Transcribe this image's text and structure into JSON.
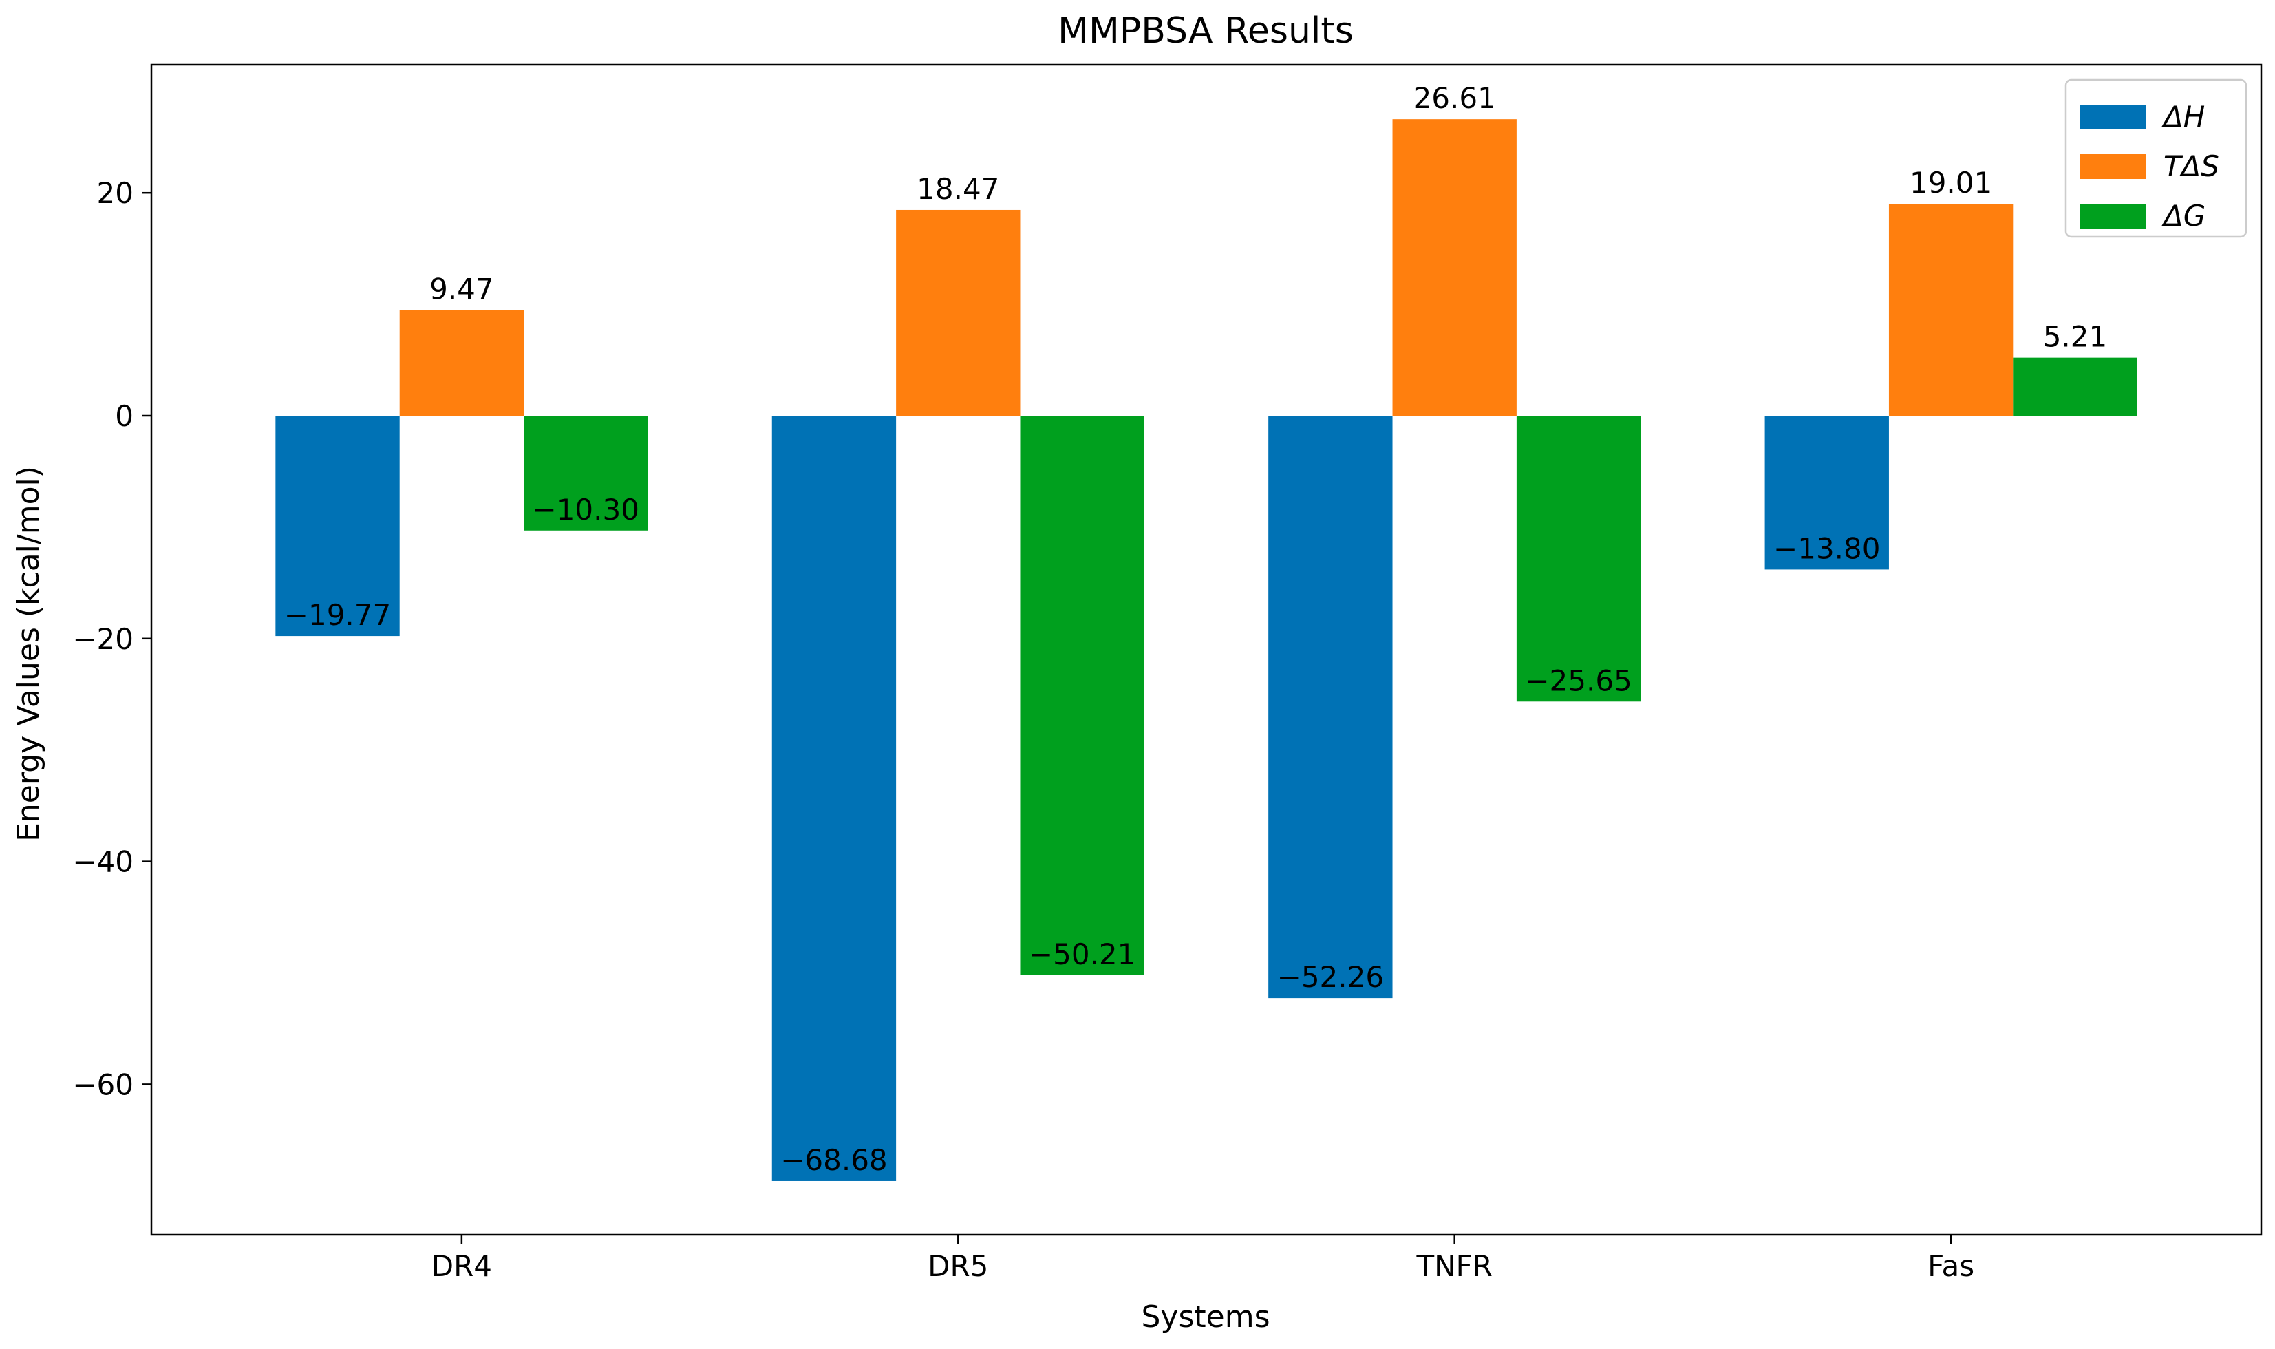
{
  "chart_data": {
    "type": "bar",
    "title": "MMPBSA Results",
    "xlabel": "Systems",
    "ylabel": "Energy Values (kcal/mol)",
    "categories": [
      "DR4",
      "DR5",
      "TNFR",
      "Fas"
    ],
    "ylim": [
      -73.5,
      31.5
    ],
    "yticks": [
      20,
      0,
      -20,
      -40,
      -60
    ],
    "ytick_labels": [
      "20",
      "0",
      "−20",
      "−40",
      "−60"
    ],
    "series": [
      {
        "name": "ΔH",
        "color": "#0072b5",
        "values": [
          -19.77,
          -68.68,
          -52.26,
          -13.8
        ],
        "labels": [
          "−19.77",
          "−68.68",
          "−52.26",
          "−13.80"
        ]
      },
      {
        "name": "TΔS",
        "color": "#ff7f0e",
        "values": [
          9.47,
          18.47,
          26.61,
          19.01
        ],
        "labels": [
          "9.47",
          "18.47",
          "26.61",
          "19.01"
        ]
      },
      {
        "name": "ΔG",
        "color": "#00a01e",
        "values": [
          -10.3,
          -50.21,
          -25.65,
          5.21
        ],
        "labels": [
          "−10.30",
          "−50.21",
          "−25.65",
          "5.21"
        ]
      }
    ],
    "legend_position": "top-right",
    "grid": false
  }
}
